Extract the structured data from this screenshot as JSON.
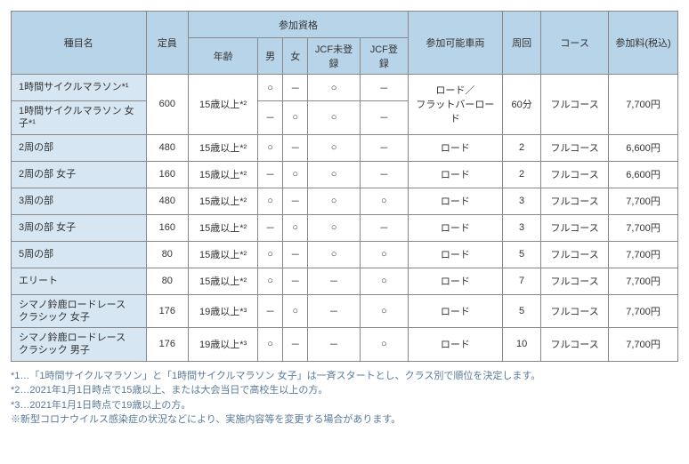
{
  "headers": {
    "name": "種目名",
    "capacity": "定員",
    "qual_group": "参加資格",
    "age": "年齢",
    "male": "男",
    "female": "女",
    "jcf_unreg": "JCF未登録",
    "jcf_reg": "JCF登録",
    "vehicle": "参加可能車両",
    "laps": "周回",
    "course": "コース",
    "fee": "参加料(税込)"
  },
  "marks": {
    "yes": "○",
    "no": "－"
  },
  "shared": {
    "cap_600": "600",
    "age_15": "15歳以上*²",
    "age_19": "19歳以上*³",
    "veh_road_flat": "ロード／\nフラットバーロード",
    "veh_road": "ロード",
    "laps_60m": "60分",
    "course_full": "フルコース",
    "fee_7700": "7,700円",
    "fee_6600": "6,600円"
  },
  "rows": {
    "r1": {
      "name": "1時間サイクルマラソン*¹"
    },
    "r2": {
      "name": "1時間サイクルマラソン 女子*¹"
    },
    "r3": {
      "name": "2周の部",
      "cap": "480",
      "laps": "2"
    },
    "r4": {
      "name": "2周の部 女子",
      "cap": "160",
      "laps": "2"
    },
    "r5": {
      "name": "3周の部",
      "cap": "480",
      "laps": "3"
    },
    "r6": {
      "name": "3周の部 女子",
      "cap": "160",
      "laps": "3"
    },
    "r7": {
      "name": "5周の部",
      "cap": "80",
      "laps": "5"
    },
    "r8": {
      "name": "エリート",
      "cap": "80",
      "laps": "7"
    },
    "r9": {
      "name": "シマノ鈴鹿ロードレース\nクラシック 女子",
      "cap": "176",
      "laps": "5"
    },
    "r10": {
      "name": "シマノ鈴鹿ロードレース\nクラシック 男子",
      "cap": "176",
      "laps": "10"
    }
  },
  "notes": {
    "n1": "*1…「1時間サイクルマラソン」と「1時間サイクルマラソン 女子」は一斉スタートとし、クラス別で順位を決定します。",
    "n2": "*2…2021年1月1日時点で15歳以上、または大会当日で高校生以上の方。",
    "n3": "*3…2021年1月1日時点で19歳以上の方。",
    "n4": "※新型コロナウイルス感染症の状況などにより、実施内容等を変更する場合があります。"
  }
}
